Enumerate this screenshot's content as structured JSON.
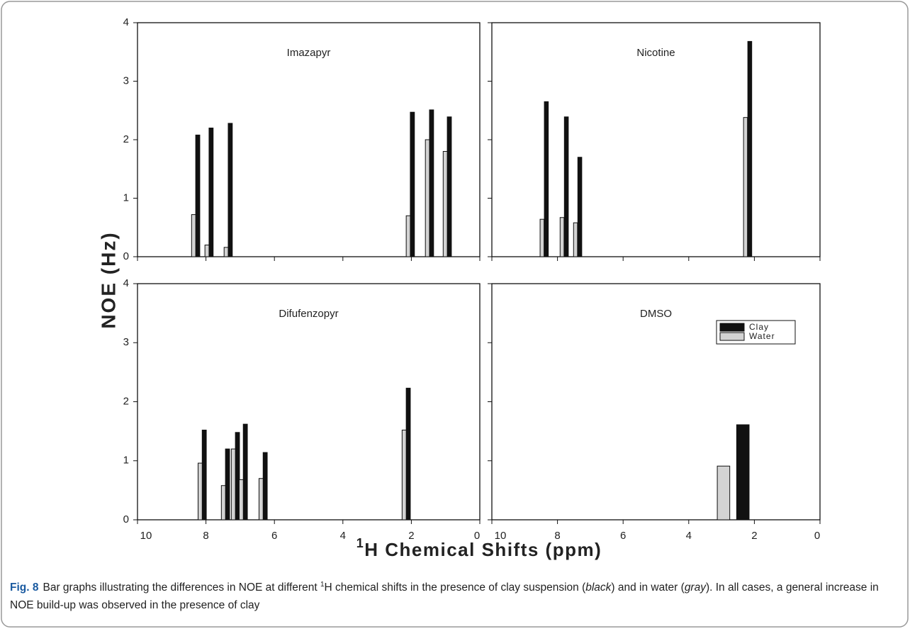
{
  "chart_data": [
    {
      "type": "bar",
      "title": "Imazapyr",
      "xlim": [
        10,
        0
      ],
      "ylim": [
        0,
        4
      ],
      "xticks": [
        10,
        8,
        6,
        4,
        2,
        0
      ],
      "yticks": [
        0,
        1,
        2,
        3,
        4
      ],
      "xtick_labels": false,
      "ytick_labels": true,
      "series": [
        {
          "name": "Clay",
          "color": "#111111",
          "x": [
            8.24,
            7.85,
            7.29,
            1.97,
            1.41,
            0.89
          ],
          "values": [
            2.08,
            2.2,
            2.28,
            2.47,
            2.51,
            2.39
          ]
        },
        {
          "name": "Water",
          "color": "#d3d3d3",
          "x": [
            8.36,
            7.97,
            7.41,
            2.09,
            1.53,
            1.01
          ],
          "values": [
            0.72,
            0.2,
            0.16,
            0.7,
            2.0,
            1.8
          ]
        }
      ]
    },
    {
      "type": "bar",
      "title": "Nicotine",
      "xlim": [
        10,
        0
      ],
      "ylim": [
        0,
        4
      ],
      "xticks": [
        10,
        8,
        6,
        4,
        2,
        0
      ],
      "yticks": [
        0,
        1,
        2,
        3,
        4
      ],
      "xtick_labels": false,
      "ytick_labels": false,
      "series": [
        {
          "name": "Clay",
          "color": "#111111",
          "x": [
            8.34,
            7.73,
            7.32,
            2.14
          ],
          "values": [
            2.65,
            2.39,
            1.7,
            3.68
          ]
        },
        {
          "name": "Water",
          "color": "#d3d3d3",
          "x": [
            8.47,
            7.86,
            7.45,
            2.27
          ],
          "values": [
            0.64,
            0.67,
            0.58,
            2.38
          ]
        }
      ]
    },
    {
      "type": "bar",
      "title": "Difufenzopyr",
      "xlim": [
        10,
        0
      ],
      "ylim": [
        0,
        4
      ],
      "xticks": [
        10,
        8,
        6,
        4,
        2,
        0
      ],
      "yticks": [
        0,
        1,
        2,
        3,
        4
      ],
      "xtick_labels": true,
      "ytick_labels": true,
      "series": [
        {
          "name": "Clay",
          "color": "#111111",
          "x": [
            8.05,
            7.37,
            7.08,
            6.85,
            6.27,
            2.09
          ],
          "values": [
            1.52,
            1.2,
            1.48,
            1.62,
            1.14,
            2.23
          ]
        },
        {
          "name": "Water",
          "color": "#d3d3d3",
          "x": [
            8.17,
            7.49,
            7.2,
            6.97,
            6.39,
            2.21
          ],
          "values": [
            0.96,
            0.58,
            1.2,
            0.68,
            0.7,
            1.52
          ]
        }
      ]
    },
    {
      "type": "bar",
      "title": "DMSO",
      "xlim": [
        10,
        0
      ],
      "ylim": [
        0,
        4
      ],
      "xticks": [
        10,
        8,
        6,
        4,
        2,
        0
      ],
      "yticks": [
        0,
        1,
        2,
        3,
        4
      ],
      "xtick_labels": true,
      "ytick_labels": false,
      "legend": "upper right",
      "series": [
        {
          "name": "Clay",
          "color": "#111111",
          "x": [
            2.35
          ],
          "values": [
            1.61
          ]
        },
        {
          "name": "Water",
          "color": "#d3d3d3",
          "x": [
            2.94
          ],
          "values": [
            0.91
          ]
        }
      ]
    }
  ],
  "y_label": "NOE (Hz)",
  "x_label": [
    {
      "text": "1",
      "style": "sup"
    },
    {
      "text": "H Chemical Shifts (ppm)",
      "style": "plain"
    }
  ],
  "caption": {
    "label": "Fig. 8",
    "parts": [
      {
        "text": "Bar graphs illustrating the differences in NOE at different ",
        "style": "plain"
      },
      {
        "text": "1",
        "style": "sup"
      },
      {
        "text": "H chemical shifts in the presence of clay suspension (",
        "style": "plain"
      },
      {
        "text": "black",
        "style": "italic"
      },
      {
        "text": ") and in water (",
        "style": "plain"
      },
      {
        "text": "gray",
        "style": "italic"
      },
      {
        "text": "). In all cases, a general increase in NOE build-up was observed in the presence of clay",
        "style": "plain"
      }
    ]
  }
}
